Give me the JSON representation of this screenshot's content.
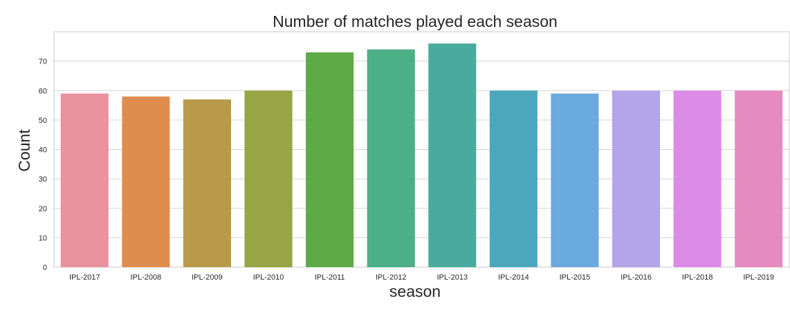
{
  "chart_data": {
    "type": "bar",
    "title": "Number of matches played each season",
    "xlabel": "season",
    "ylabel": "Count",
    "categories": [
      "IPL-2017",
      "IPL-2008",
      "IPL-2009",
      "IPL-2010",
      "IPL-2011",
      "IPL-2012",
      "IPL-2013",
      "IPL-2014",
      "IPL-2015",
      "IPL-2016",
      "IPL-2018",
      "IPL-2019"
    ],
    "values": [
      59,
      58,
      57,
      60,
      73,
      74,
      76,
      60,
      59,
      60,
      60,
      60
    ],
    "colors": [
      "#e8939f",
      "#df8d4f",
      "#b99a48",
      "#97a545",
      "#5daa47",
      "#4baf87",
      "#49ab9e",
      "#4ba8bc",
      "#6aaadf",
      "#b4a4e8",
      "#dd8be8",
      "#e68bc1"
    ],
    "yticks": [
      0,
      10,
      20,
      30,
      40,
      50,
      60,
      70
    ],
    "ylim": [
      0,
      80
    ],
    "grid": true
  }
}
